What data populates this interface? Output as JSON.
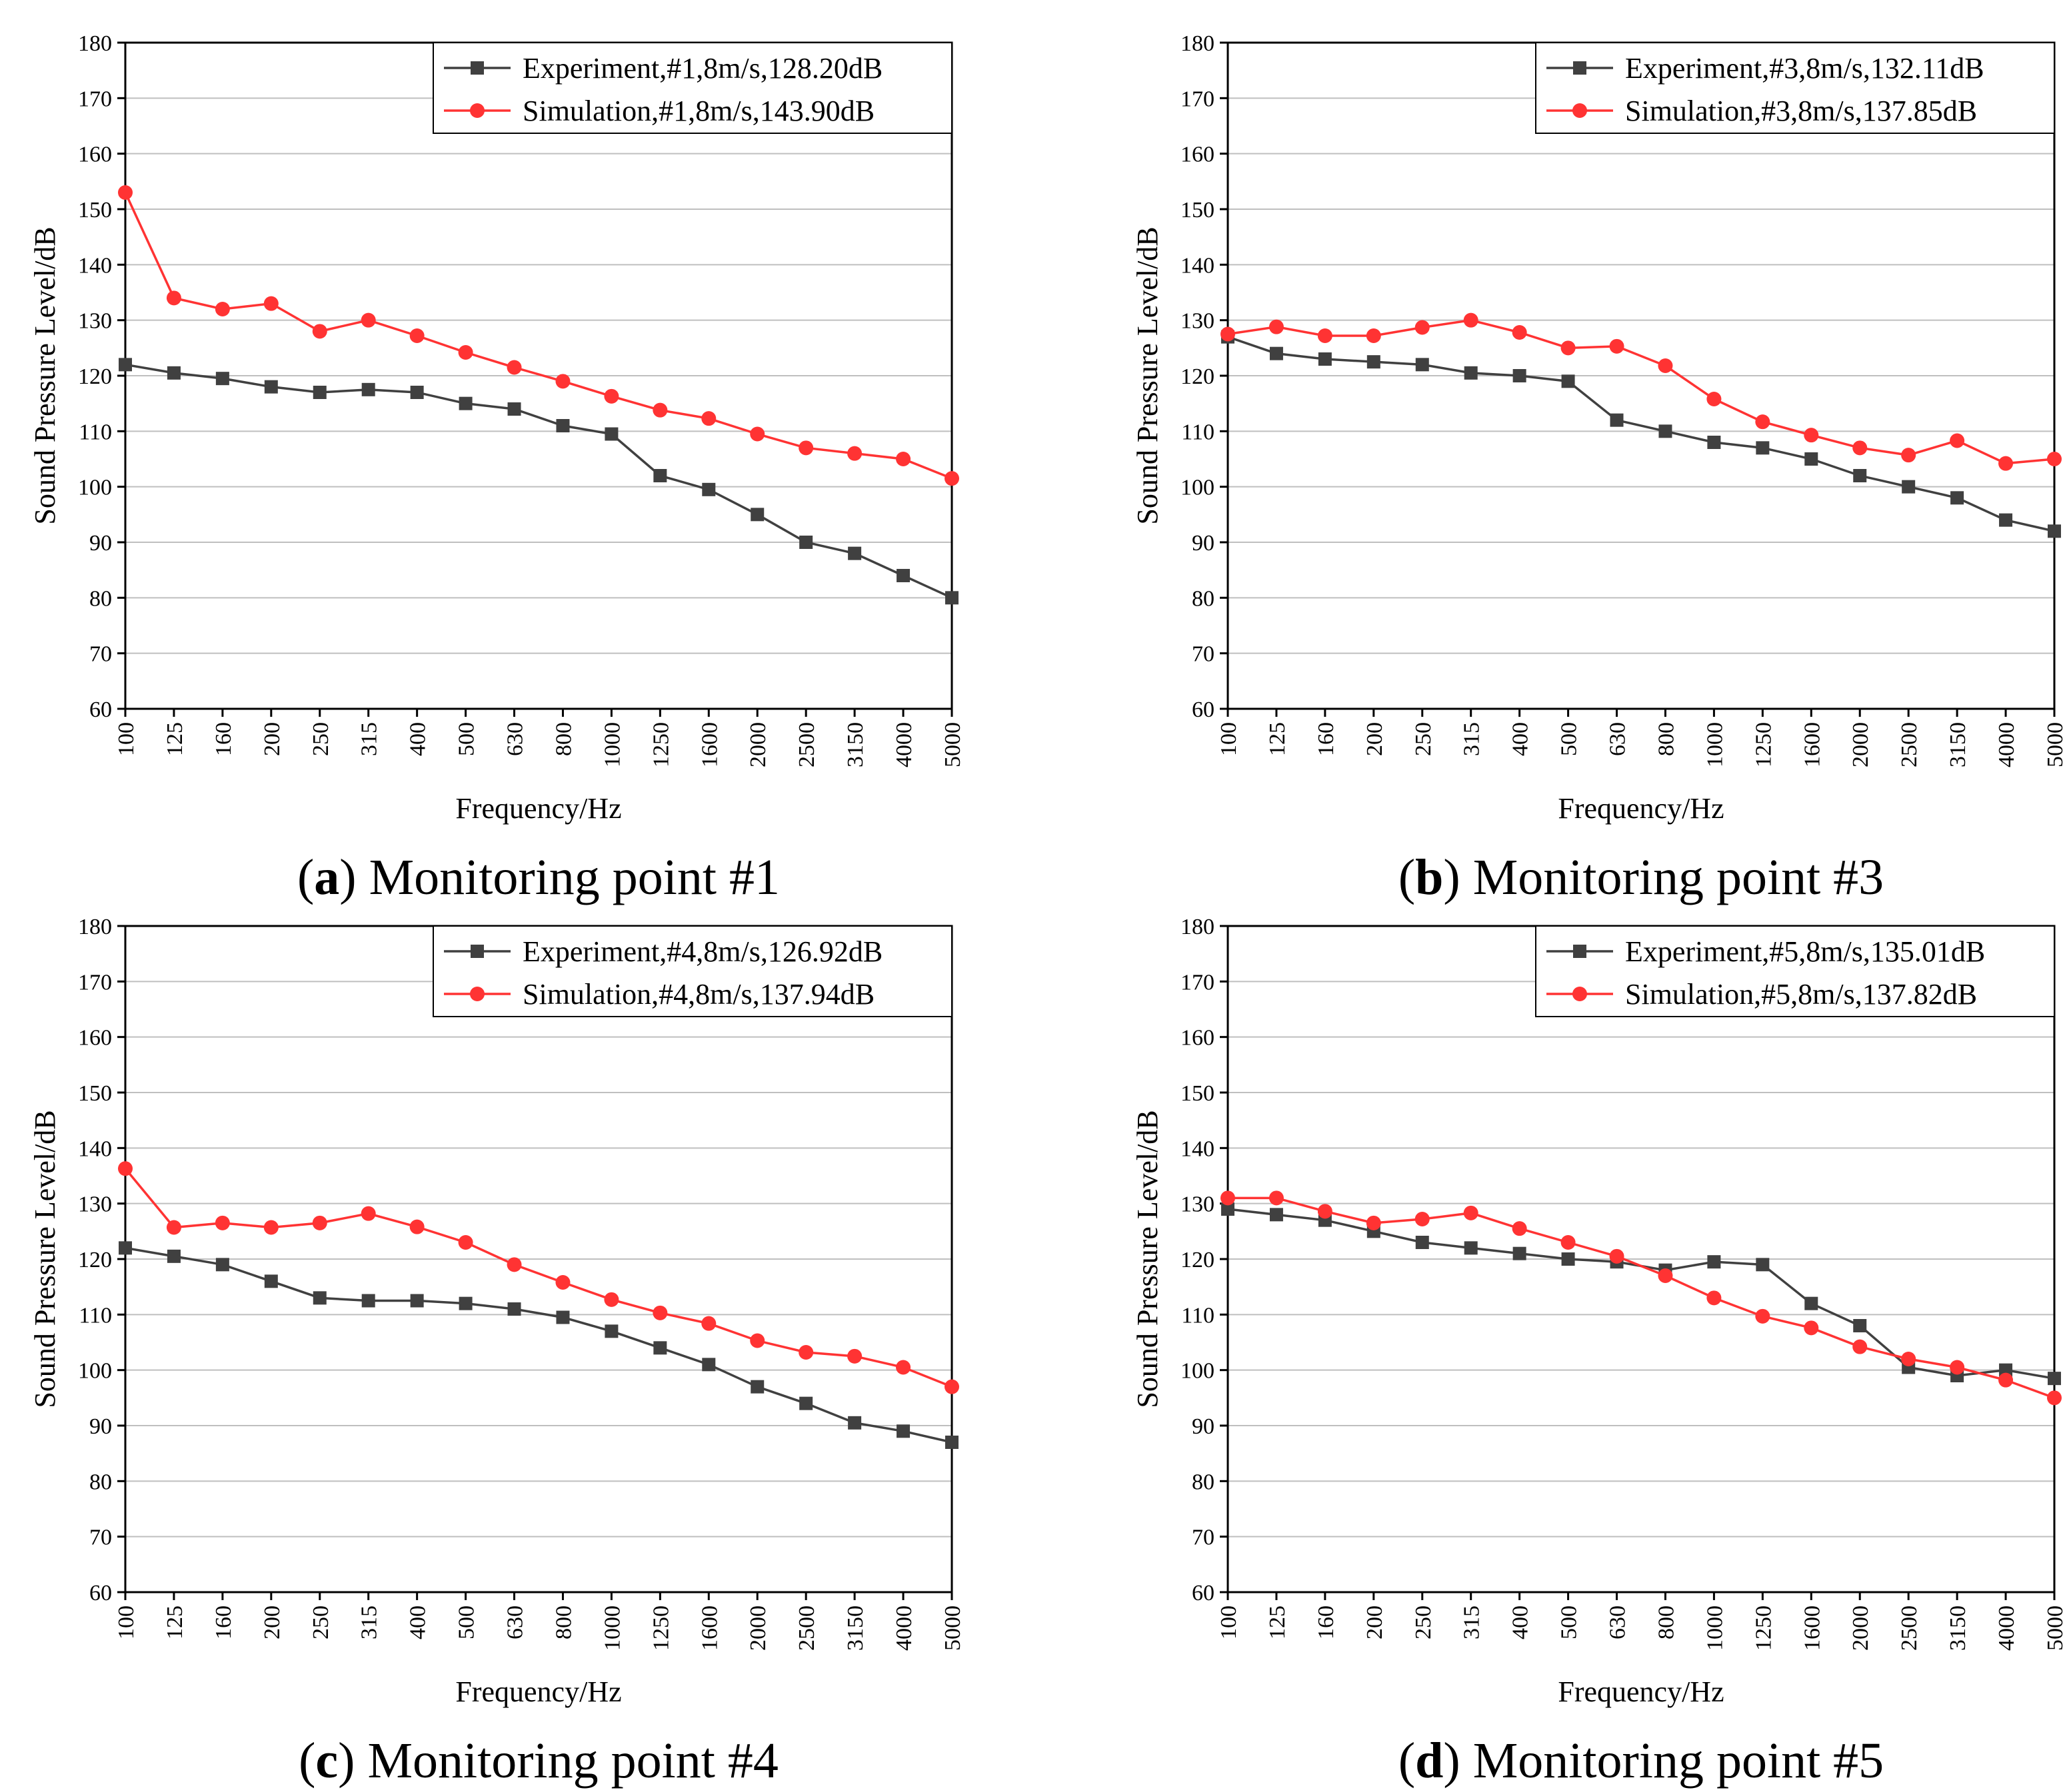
{
  "colors": {
    "experiment": "#404040",
    "simulation": "#ff3333",
    "grid": "#bfbfbf",
    "axis": "#000000"
  },
  "chart_data": [
    {
      "type": "line",
      "caption": {
        "letter": "a",
        "text": " Monitoring point #1"
      },
      "xlabel": "Frequency/Hz",
      "ylabel": "Sound Pressure Level/dB",
      "ylim": [
        60,
        180
      ],
      "yticks": [
        60,
        70,
        80,
        90,
        100,
        110,
        120,
        130,
        140,
        150,
        160,
        170,
        180
      ],
      "grid": true,
      "legend_position": "top-right",
      "categories": [
        "100",
        "125",
        "160",
        "200",
        "250",
        "315",
        "400",
        "500",
        "630",
        "800",
        "1000",
        "1250",
        "1600",
        "2000",
        "2500",
        "3150",
        "4000",
        "5000"
      ],
      "series": [
        {
          "name": "Experiment,#1,8m/s,128.20dB",
          "marker": "square",
          "color_key": "experiment",
          "values": [
            122,
            120.5,
            119.5,
            118,
            117,
            117.5,
            117,
            115,
            114,
            111,
            109.5,
            102,
            99.5,
            95,
            90,
            88,
            84,
            80
          ]
        },
        {
          "name": "Simulation,#1,8m/s,143.90dB",
          "marker": "circle",
          "color_key": "simulation",
          "values": [
            153,
            134,
            132,
            133,
            128,
            130,
            127.2,
            124.2,
            121.5,
            119,
            116.3,
            113.8,
            112.3,
            109.5,
            107,
            106,
            105,
            101.5
          ]
        }
      ]
    },
    {
      "type": "line",
      "caption": {
        "letter": "b",
        "text": " Monitoring point #3"
      },
      "xlabel": "Frequency/Hz",
      "ylabel": "Sound Pressure Level/dB",
      "ylim": [
        60,
        180
      ],
      "yticks": [
        60,
        70,
        80,
        90,
        100,
        110,
        120,
        130,
        140,
        150,
        160,
        170,
        180
      ],
      "grid": true,
      "legend_position": "top-right",
      "categories": [
        "100",
        "125",
        "160",
        "200",
        "250",
        "315",
        "400",
        "500",
        "630",
        "800",
        "1000",
        "1250",
        "1600",
        "2000",
        "2500",
        "3150",
        "4000",
        "5000"
      ],
      "series": [
        {
          "name": "Experiment,#3,8m/s,132.11dB",
          "marker": "square",
          "color_key": "experiment",
          "values": [
            127,
            124,
            123,
            122.5,
            122,
            120.5,
            120,
            119,
            112,
            110,
            108,
            107,
            105,
            102,
            100,
            98,
            94,
            92
          ]
        },
        {
          "name": "Simulation,#3,8m/s,137.85dB",
          "marker": "circle",
          "color_key": "simulation",
          "values": [
            127.5,
            128.8,
            127.2,
            127.2,
            128.7,
            130,
            127.8,
            125,
            125.3,
            121.8,
            115.8,
            111.7,
            109.3,
            107,
            105.7,
            108.3,
            104.2,
            105
          ]
        }
      ]
    },
    {
      "type": "line",
      "caption": {
        "letter": "c",
        "text": " Monitoring point #4"
      },
      "xlabel": "Frequency/Hz",
      "ylabel": "Sound Pressure Level/dB",
      "ylim": [
        60,
        180
      ],
      "yticks": [
        60,
        70,
        80,
        90,
        100,
        110,
        120,
        130,
        140,
        150,
        160,
        170,
        180
      ],
      "grid": true,
      "legend_position": "top-right",
      "categories": [
        "100",
        "125",
        "160",
        "200",
        "250",
        "315",
        "400",
        "500",
        "630",
        "800",
        "1000",
        "1250",
        "1600",
        "2000",
        "2500",
        "3150",
        "4000",
        "5000"
      ],
      "series": [
        {
          "name": "Experiment,#4,8m/s,126.92dB",
          "marker": "square",
          "color_key": "experiment",
          "values": [
            122,
            120.5,
            119,
            116,
            113,
            112.5,
            112.5,
            112,
            111,
            109.5,
            107,
            104,
            101,
            97,
            94,
            90.5,
            89,
            87
          ]
        },
        {
          "name": "Simulation,#4,8m/s,137.94dB",
          "marker": "circle",
          "color_key": "simulation",
          "values": [
            136.3,
            125.7,
            126.5,
            125.7,
            126.5,
            128.2,
            125.8,
            123,
            119,
            115.8,
            112.7,
            110.3,
            108.4,
            105.3,
            103.2,
            102.5,
            100.5,
            97
          ]
        }
      ]
    },
    {
      "type": "line",
      "caption": {
        "letter": "d",
        "text": " Monitoring point #5"
      },
      "xlabel": "Frequency/Hz",
      "ylabel": "Sound Pressure Level/dB",
      "ylim": [
        60,
        180
      ],
      "yticks": [
        60,
        70,
        80,
        90,
        100,
        110,
        120,
        130,
        140,
        150,
        160,
        170,
        180
      ],
      "grid": true,
      "legend_position": "top-right",
      "categories": [
        "100",
        "125",
        "160",
        "200",
        "250",
        "315",
        "400",
        "500",
        "630",
        "800",
        "1000",
        "1250",
        "1600",
        "2000",
        "2500",
        "3150",
        "4000",
        "5000"
      ],
      "series": [
        {
          "name": "Experiment,#5,8m/s,135.01dB",
          "marker": "square",
          "color_key": "experiment",
          "values": [
            129,
            128,
            127,
            125,
            123,
            122,
            121,
            120,
            119.5,
            118,
            119.5,
            119,
            112,
            108,
            100.5,
            99,
            100,
            98.5
          ]
        },
        {
          "name": "Simulation,#5,8m/s,137.82dB",
          "marker": "circle",
          "color_key": "simulation",
          "values": [
            131,
            131,
            128.6,
            126.5,
            127.2,
            128.3,
            125.5,
            123,
            120.5,
            117,
            113,
            109.7,
            107.6,
            104.2,
            102,
            100.5,
            98.2,
            95
          ]
        }
      ]
    }
  ]
}
